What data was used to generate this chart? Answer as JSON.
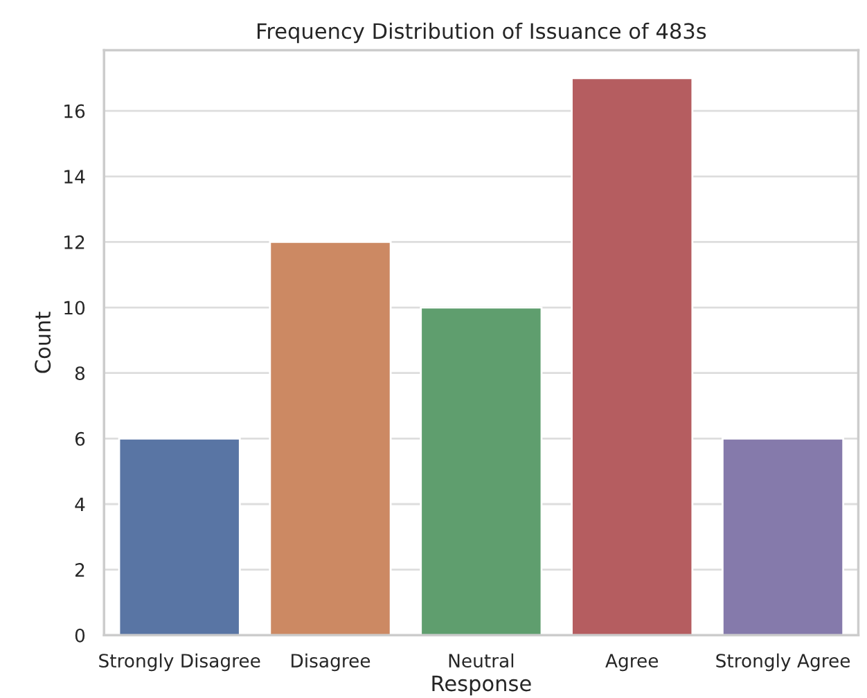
{
  "chart_data": {
    "type": "bar",
    "title": "Frequency Distribution of Issuance of 483s",
    "xlabel": "Response",
    "ylabel": "Count",
    "categories": [
      "Strongly Disagree",
      "Disagree",
      "Neutral",
      "Agree",
      "Strongly Agree"
    ],
    "values": [
      6,
      12,
      10,
      17,
      6
    ],
    "colors": [
      "#5975a4",
      "#cc8963",
      "#5f9e6e",
      "#b55d60",
      "#857aab"
    ],
    "ylim": [
      0,
      17.85
    ],
    "yticks": [
      0,
      2,
      4,
      6,
      8,
      10,
      12,
      14,
      16
    ],
    "grid": "y",
    "legend": false
  }
}
